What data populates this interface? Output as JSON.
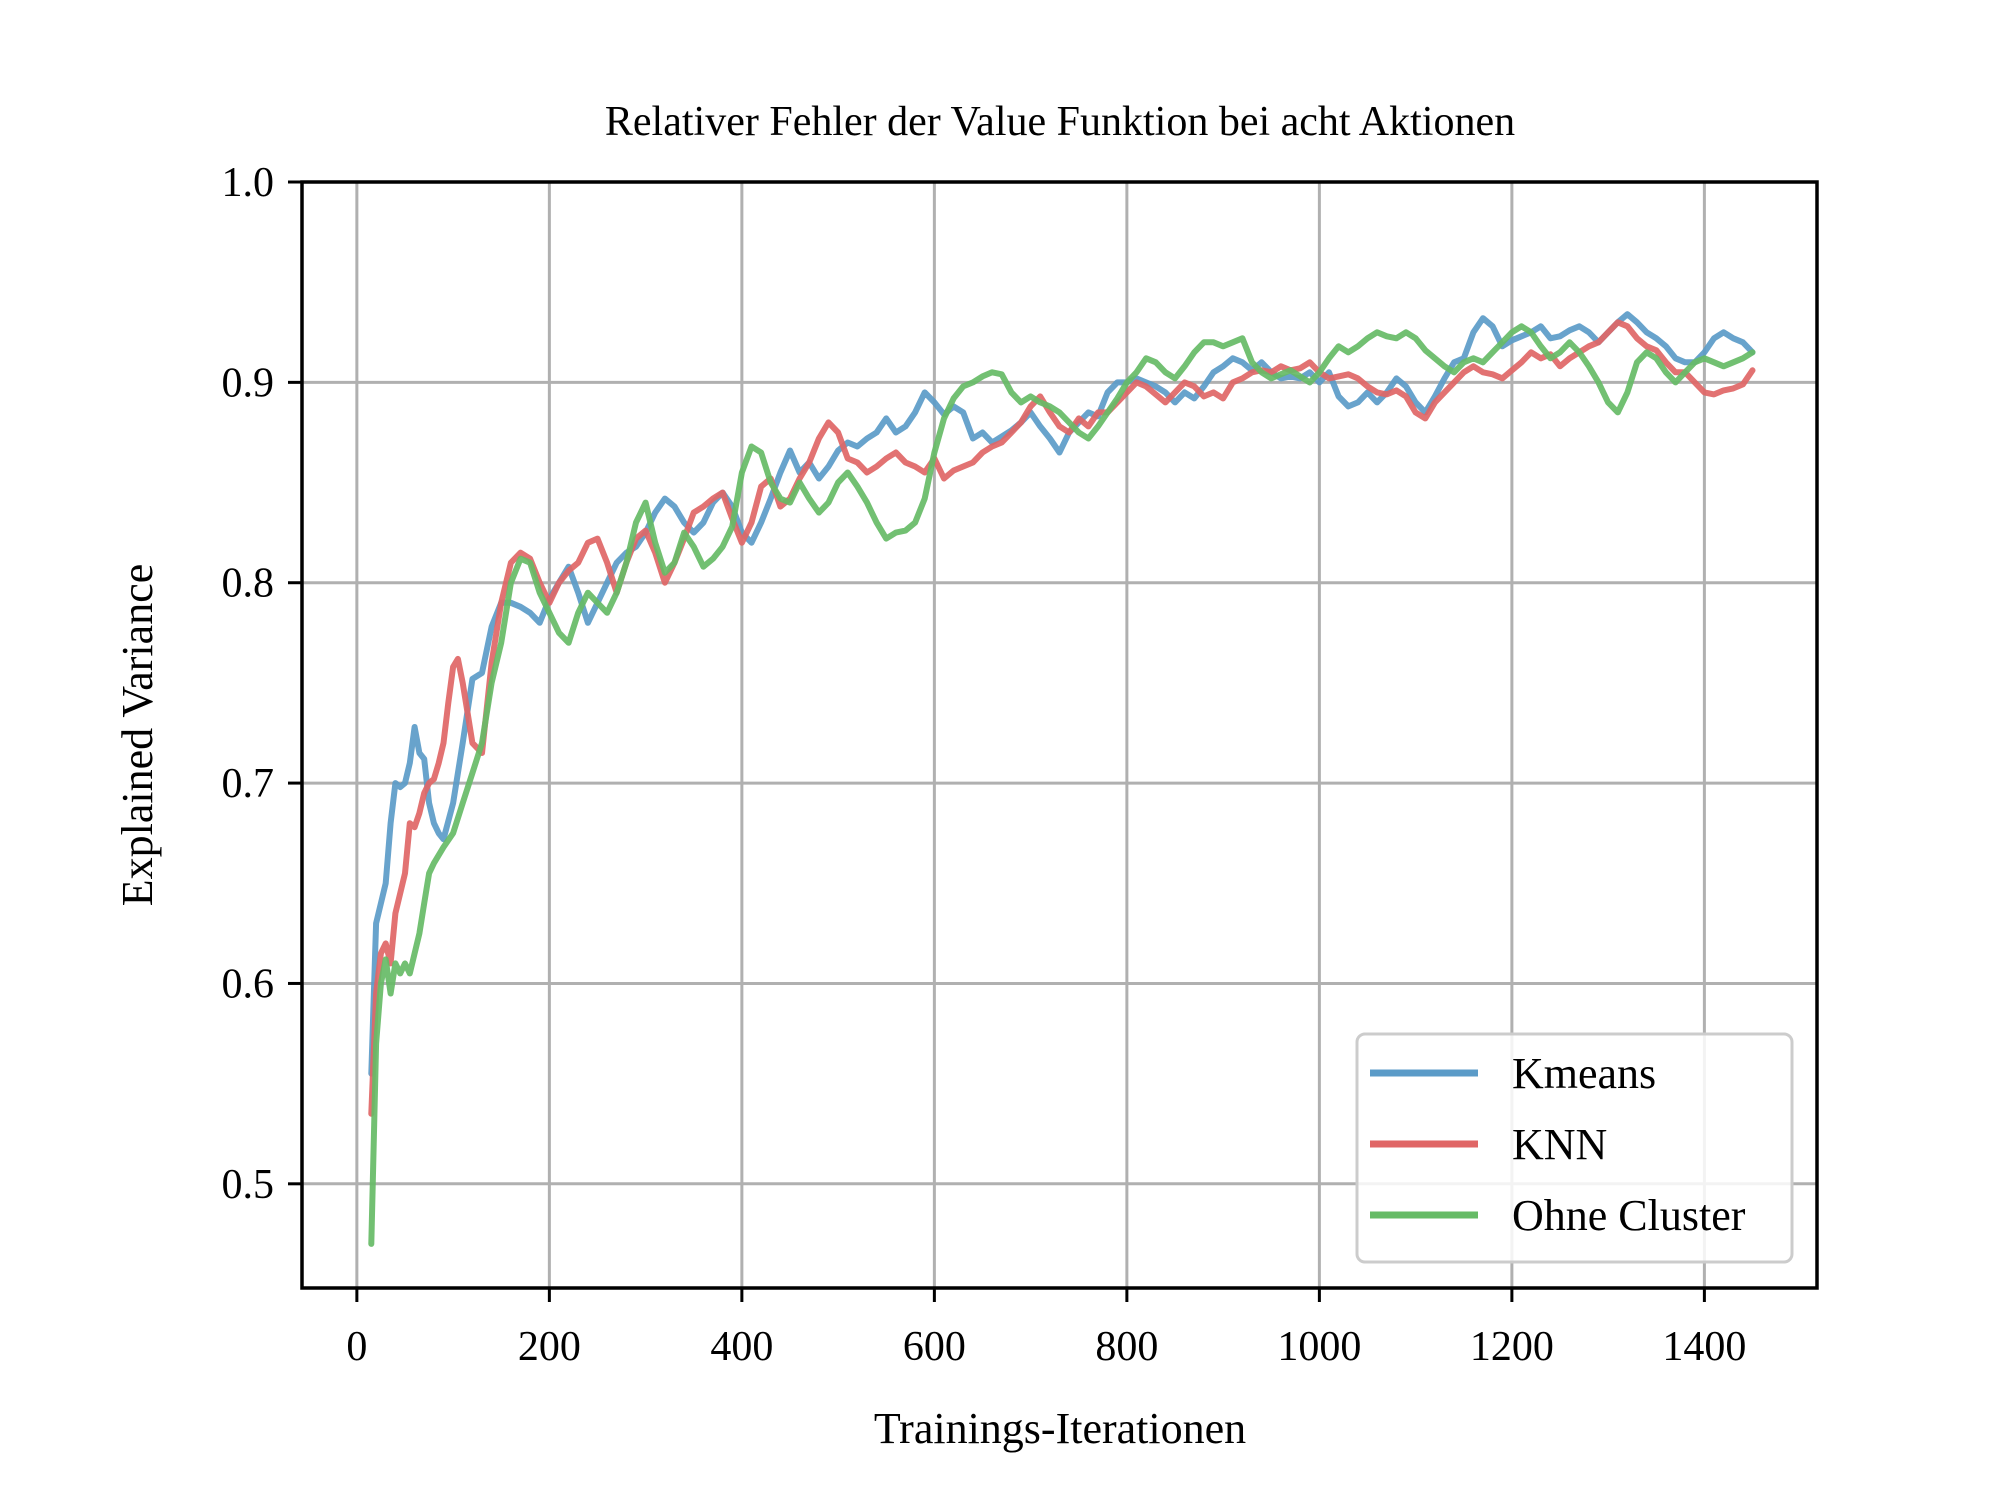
{
  "chart_data": {
    "type": "line",
    "title": "Relativer Fehler der Value Funktion bei acht Aktionen",
    "xlabel": "Trainings-Iterationen",
    "ylabel": "Explained Variance",
    "xlim": [
      -57,
      1517
    ],
    "ylim": [
      0.448,
      1.0
    ],
    "xticks": [
      0,
      200,
      400,
      600,
      800,
      1000,
      1200,
      1400
    ],
    "xtick_labels": [
      "0",
      "200",
      "400",
      "600",
      "800",
      "1000",
      "1200",
      "1400"
    ],
    "yticks": [
      0.5,
      0.6,
      0.7,
      0.8,
      0.9,
      1.0
    ],
    "ytick_labels": [
      "0.5",
      "0.6",
      "0.7",
      "0.8",
      "0.9",
      "1.0"
    ],
    "grid": true,
    "legend_position": "lower-right",
    "series": [
      {
        "name": "Kmeans",
        "color": "#5b9bc8",
        "x": [
          15,
          20,
          25,
          30,
          35,
          40,
          45,
          50,
          55,
          60,
          65,
          70,
          75,
          80,
          85,
          90,
          100,
          110,
          120,
          130,
          140,
          150,
          160,
          170,
          180,
          190,
          200,
          210,
          220,
          230,
          240,
          250,
          260,
          270,
          280,
          290,
          300,
          310,
          320,
          330,
          340,
          350,
          360,
          370,
          380,
          390,
          400,
          410,
          420,
          430,
          440,
          450,
          460,
          470,
          480,
          490,
          500,
          510,
          520,
          530,
          540,
          550,
          560,
          570,
          580,
          590,
          600,
          610,
          620,
          630,
          640,
          650,
          660,
          670,
          680,
          690,
          700,
          710,
          720,
          730,
          740,
          750,
          760,
          770,
          780,
          790,
          800,
          810,
          820,
          830,
          840,
          850,
          860,
          870,
          880,
          890,
          900,
          910,
          920,
          930,
          940,
          950,
          960,
          970,
          980,
          990,
          1000,
          1010,
          1020,
          1030,
          1040,
          1050,
          1060,
          1070,
          1080,
          1090,
          1100,
          1110,
          1120,
          1130,
          1140,
          1150,
          1160,
          1170,
          1180,
          1190,
          1200,
          1210,
          1220,
          1230,
          1240,
          1250,
          1260,
          1270,
          1280,
          1290,
          1300,
          1310,
          1320,
          1330,
          1340,
          1350,
          1360,
          1370,
          1380,
          1390,
          1400,
          1410,
          1420,
          1430,
          1440,
          1450
        ],
        "y": [
          0.555,
          0.63,
          0.64,
          0.65,
          0.68,
          0.7,
          0.698,
          0.7,
          0.71,
          0.728,
          0.715,
          0.712,
          0.69,
          0.68,
          0.675,
          0.672,
          0.69,
          0.72,
          0.752,
          0.755,
          0.778,
          0.79,
          0.79,
          0.788,
          0.785,
          0.78,
          0.792,
          0.8,
          0.808,
          0.795,
          0.78,
          0.79,
          0.8,
          0.81,
          0.815,
          0.818,
          0.825,
          0.835,
          0.842,
          0.838,
          0.83,
          0.825,
          0.83,
          0.84,
          0.845,
          0.838,
          0.825,
          0.82,
          0.83,
          0.842,
          0.855,
          0.866,
          0.855,
          0.86,
          0.852,
          0.858,
          0.866,
          0.87,
          0.868,
          0.872,
          0.875,
          0.882,
          0.875,
          0.878,
          0.885,
          0.895,
          0.89,
          0.884,
          0.888,
          0.885,
          0.872,
          0.875,
          0.87,
          0.873,
          0.876,
          0.88,
          0.885,
          0.878,
          0.872,
          0.865,
          0.875,
          0.88,
          0.885,
          0.883,
          0.895,
          0.9,
          0.9,
          0.902,
          0.9,
          0.898,
          0.895,
          0.89,
          0.895,
          0.892,
          0.898,
          0.905,
          0.908,
          0.912,
          0.91,
          0.906,
          0.91,
          0.905,
          0.902,
          0.903,
          0.902,
          0.905,
          0.9,
          0.905,
          0.893,
          0.888,
          0.89,
          0.895,
          0.89,
          0.895,
          0.902,
          0.898,
          0.89,
          0.885,
          0.893,
          0.902,
          0.91,
          0.912,
          0.925,
          0.932,
          0.928,
          0.918,
          0.921,
          0.923,
          0.925,
          0.928,
          0.922,
          0.923,
          0.926,
          0.928,
          0.925,
          0.92,
          0.925,
          0.93,
          0.934,
          0.93,
          0.925,
          0.922,
          0.918,
          0.912,
          0.91,
          0.91,
          0.915,
          0.922,
          0.925,
          0.922,
          0.92,
          0.915
        ]
      },
      {
        "name": "KNN",
        "color": "#e06666",
        "x": [
          15,
          20,
          25,
          30,
          35,
          40,
          45,
          50,
          55,
          60,
          65,
          70,
          75,
          80,
          85,
          90,
          95,
          100,
          105,
          110,
          115,
          120,
          130,
          140,
          150,
          160,
          170,
          180,
          190,
          200,
          210,
          220,
          230,
          240,
          250,
          260,
          270,
          280,
          290,
          300,
          310,
          320,
          330,
          340,
          350,
          360,
          370,
          380,
          390,
          400,
          410,
          420,
          430,
          440,
          450,
          460,
          470,
          480,
          490,
          500,
          510,
          520,
          530,
          540,
          550,
          560,
          570,
          580,
          590,
          600,
          610,
          620,
          630,
          640,
          650,
          660,
          670,
          680,
          690,
          700,
          710,
          720,
          730,
          740,
          750,
          760,
          770,
          780,
          790,
          800,
          810,
          820,
          830,
          840,
          850,
          860,
          870,
          880,
          890,
          900,
          910,
          920,
          930,
          940,
          950,
          960,
          970,
          980,
          990,
          1000,
          1010,
          1020,
          1030,
          1040,
          1050,
          1060,
          1070,
          1080,
          1090,
          1100,
          1110,
          1120,
          1130,
          1140,
          1150,
          1160,
          1170,
          1180,
          1190,
          1200,
          1210,
          1220,
          1230,
          1240,
          1250,
          1260,
          1270,
          1280,
          1290,
          1300,
          1310,
          1320,
          1330,
          1340,
          1350,
          1360,
          1370,
          1380,
          1390,
          1400,
          1410,
          1420,
          1430,
          1440,
          1450
        ],
        "y": [
          0.535,
          0.595,
          0.615,
          0.62,
          0.61,
          0.635,
          0.645,
          0.655,
          0.68,
          0.678,
          0.685,
          0.695,
          0.7,
          0.702,
          0.71,
          0.72,
          0.74,
          0.758,
          0.762,
          0.75,
          0.735,
          0.72,
          0.715,
          0.76,
          0.79,
          0.81,
          0.815,
          0.812,
          0.8,
          0.79,
          0.8,
          0.806,
          0.81,
          0.82,
          0.822,
          0.81,
          0.795,
          0.81,
          0.822,
          0.826,
          0.815,
          0.8,
          0.81,
          0.822,
          0.835,
          0.838,
          0.842,
          0.845,
          0.832,
          0.82,
          0.83,
          0.848,
          0.852,
          0.838,
          0.842,
          0.852,
          0.86,
          0.872,
          0.88,
          0.875,
          0.862,
          0.86,
          0.855,
          0.858,
          0.862,
          0.865,
          0.86,
          0.858,
          0.855,
          0.862,
          0.852,
          0.856,
          0.858,
          0.86,
          0.865,
          0.868,
          0.87,
          0.875,
          0.88,
          0.888,
          0.893,
          0.885,
          0.878,
          0.875,
          0.882,
          0.878,
          0.885,
          0.885,
          0.89,
          0.895,
          0.9,
          0.898,
          0.894,
          0.89,
          0.895,
          0.9,
          0.898,
          0.893,
          0.895,
          0.892,
          0.9,
          0.902,
          0.905,
          0.906,
          0.905,
          0.908,
          0.906,
          0.907,
          0.91,
          0.905,
          0.902,
          0.903,
          0.904,
          0.902,
          0.898,
          0.895,
          0.894,
          0.896,
          0.893,
          0.885,
          0.882,
          0.89,
          0.895,
          0.9,
          0.905,
          0.908,
          0.905,
          0.904,
          0.902,
          0.906,
          0.91,
          0.915,
          0.912,
          0.914,
          0.908,
          0.912,
          0.915,
          0.918,
          0.92,
          0.925,
          0.93,
          0.928,
          0.922,
          0.918,
          0.916,
          0.91,
          0.905,
          0.905,
          0.9,
          0.895,
          0.894,
          0.896,
          0.897,
          0.899,
          0.906
        ]
      },
      {
        "name": "Ohne Cluster",
        "color": "#66bb66",
        "x": [
          15,
          18,
          20,
          25,
          30,
          35,
          40,
          45,
          50,
          55,
          60,
          65,
          70,
          75,
          80,
          90,
          100,
          110,
          120,
          130,
          140,
          150,
          160,
          170,
          180,
          190,
          200,
          210,
          220,
          230,
          240,
          250,
          260,
          270,
          280,
          290,
          300,
          310,
          320,
          330,
          340,
          350,
          360,
          370,
          380,
          390,
          400,
          410,
          420,
          430,
          440,
          450,
          460,
          470,
          480,
          490,
          500,
          510,
          520,
          530,
          540,
          550,
          560,
          570,
          580,
          590,
          600,
          610,
          620,
          630,
          640,
          650,
          660,
          670,
          680,
          690,
          700,
          710,
          720,
          730,
          740,
          750,
          760,
          770,
          780,
          790,
          800,
          810,
          820,
          830,
          840,
          850,
          860,
          870,
          880,
          890,
          900,
          910,
          920,
          930,
          940,
          950,
          960,
          970,
          980,
          990,
          1000,
          1010,
          1020,
          1030,
          1040,
          1050,
          1060,
          1070,
          1080,
          1090,
          1100,
          1110,
          1120,
          1130,
          1140,
          1150,
          1160,
          1170,
          1180,
          1190,
          1200,
          1210,
          1220,
          1230,
          1240,
          1250,
          1260,
          1270,
          1280,
          1290,
          1300,
          1310,
          1320,
          1330,
          1340,
          1350,
          1360,
          1370,
          1380,
          1390,
          1400,
          1410,
          1420,
          1430,
          1440,
          1450
        ],
        "y": [
          0.47,
          0.53,
          0.57,
          0.6,
          0.612,
          0.595,
          0.61,
          0.605,
          0.61,
          0.605,
          0.615,
          0.625,
          0.64,
          0.655,
          0.66,
          0.668,
          0.675,
          0.69,
          0.705,
          0.72,
          0.75,
          0.77,
          0.8,
          0.812,
          0.81,
          0.795,
          0.785,
          0.775,
          0.77,
          0.785,
          0.795,
          0.79,
          0.785,
          0.795,
          0.81,
          0.83,
          0.84,
          0.82,
          0.805,
          0.81,
          0.825,
          0.818,
          0.808,
          0.812,
          0.818,
          0.828,
          0.855,
          0.868,
          0.865,
          0.85,
          0.842,
          0.84,
          0.85,
          0.842,
          0.835,
          0.84,
          0.85,
          0.855,
          0.848,
          0.84,
          0.83,
          0.822,
          0.825,
          0.826,
          0.83,
          0.842,
          0.865,
          0.882,
          0.892,
          0.898,
          0.9,
          0.903,
          0.905,
          0.904,
          0.895,
          0.89,
          0.893,
          0.89,
          0.888,
          0.885,
          0.88,
          0.875,
          0.872,
          0.878,
          0.885,
          0.892,
          0.9,
          0.905,
          0.912,
          0.91,
          0.905,
          0.902,
          0.908,
          0.915,
          0.92,
          0.92,
          0.918,
          0.92,
          0.922,
          0.91,
          0.905,
          0.902,
          0.904,
          0.906,
          0.903,
          0.9,
          0.905,
          0.912,
          0.918,
          0.915,
          0.918,
          0.922,
          0.925,
          0.923,
          0.922,
          0.925,
          0.922,
          0.916,
          0.912,
          0.908,
          0.905,
          0.91,
          0.912,
          0.91,
          0.915,
          0.92,
          0.925,
          0.928,
          0.925,
          0.918,
          0.912,
          0.915,
          0.92,
          0.915,
          0.908,
          0.9,
          0.89,
          0.885,
          0.895,
          0.91,
          0.915,
          0.912,
          0.905,
          0.9,
          0.905,
          0.91,
          0.912,
          0.91,
          0.908,
          0.91,
          0.912,
          0.915
        ]
      }
    ]
  }
}
